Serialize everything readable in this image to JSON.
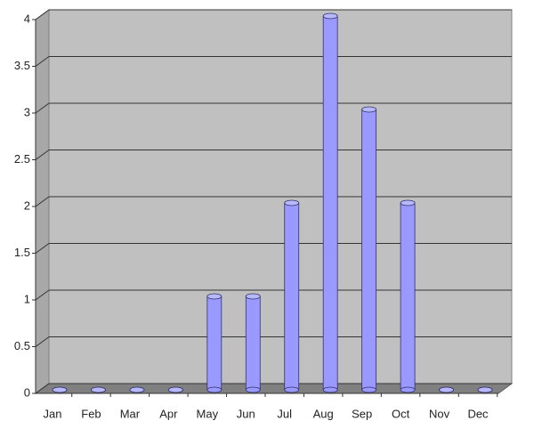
{
  "chart_data": {
    "type": "bar",
    "categories": [
      "Jan",
      "Feb",
      "Mar",
      "Apr",
      "May",
      "Jun",
      "Jul",
      "Aug",
      "Sep",
      "Oct",
      "Nov",
      "Dec"
    ],
    "values": [
      0,
      0,
      0,
      0,
      1,
      1,
      2,
      4,
      3,
      2,
      0,
      0
    ],
    "color": "#9999ff",
    "ylim": [
      0,
      4
    ],
    "yticks": [
      0,
      0.5,
      1,
      1.5,
      2,
      2.5,
      3,
      3.5,
      4
    ],
    "grid": true
  }
}
